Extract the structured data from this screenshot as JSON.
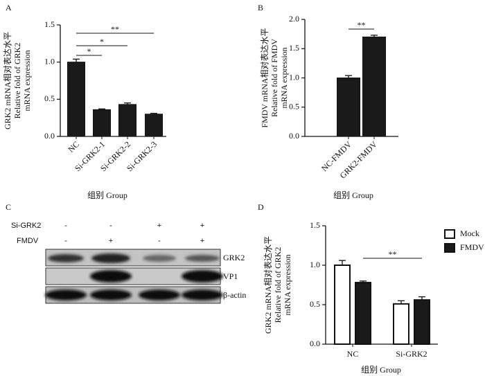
{
  "chart_data": [
    {
      "type": "bar",
      "panel": "A",
      "ylabel": [
        "GRK2 mRNA相对表达水平",
        "Relative fold of GRK2",
        "mRNA expression"
      ],
      "xlabel": "组别 Group",
      "categories": [
        "NC",
        "Si-GRK2-1",
        "Si-GRK2-2",
        "Si-GRK2-3"
      ],
      "values": [
        1.0,
        0.36,
        0.43,
        0.3
      ],
      "errors": [
        0.04,
        0.01,
        0.02,
        0.01
      ],
      "color": "#1a1a1a",
      "ylim": [
        0,
        1.5
      ],
      "yticks": [
        {
          "value": 0,
          "label": "0.0"
        },
        {
          "value": 0.5,
          "label": "0.5"
        },
        {
          "value": 1,
          "label": "1.0"
        },
        {
          "value": 1.5,
          "label": "1.5"
        }
      ],
      "annotations": [
        "*",
        "*",
        "**"
      ]
    },
    {
      "type": "bar",
      "panel": "B",
      "ylabel": [
        "FMDV mRNA相对表达水平",
        "Relative fold of FMDV",
        "mRNA expression"
      ],
      "xlabel": "组别 Group",
      "categories": [
        "NC-FMDV",
        "GRK2-FMDV"
      ],
      "values": [
        1.0,
        1.7
      ],
      "errors": [
        0.04,
        0.03
      ],
      "color": "#1a1a1a",
      "ylim": [
        0,
        2
      ],
      "yticks": [
        {
          "value": 0,
          "label": "0.0"
        },
        {
          "value": 0.5,
          "label": "0.5"
        },
        {
          "value": 1,
          "label": "1.0"
        },
        {
          "value": 1.5,
          "label": "1.5"
        },
        {
          "value": 2,
          "label": "2.0"
        }
      ],
      "annotations": [
        "**"
      ]
    },
    {
      "type": "grouped_bar",
      "panel": "D",
      "ylabel": [
        "GRK2 mRNA相对表达水平",
        "Relative fold of GRK2",
        "mRNA expression"
      ],
      "xlabel": "组别 Group",
      "categories": [
        "NC",
        "Si-GRK2"
      ],
      "series": [
        {
          "name": "Mock",
          "color": "#ffffff",
          "values": [
            1.0,
            0.51
          ],
          "errors": [
            0.06,
            0.04
          ]
        },
        {
          "name": "FMDV",
          "color": "#1a1a1a",
          "values": [
            0.78,
            0.56
          ],
          "errors": [
            0.02,
            0.04
          ]
        }
      ],
      "ylim": [
        0,
        1.5
      ],
      "yticks": [
        {
          "value": 0,
          "label": "0.0"
        },
        {
          "value": 0.5,
          "label": "0.5"
        },
        {
          "value": 1,
          "label": "1.0"
        },
        {
          "value": 1.5,
          "label": "1.5"
        }
      ],
      "legend": "outside right",
      "annotations": [
        "**"
      ]
    }
  ],
  "blot": {
    "panel": "C",
    "conditions": [
      {
        "name": "Si-GRK2",
        "signs": [
          "-",
          "-",
          "+",
          "+"
        ]
      },
      {
        "name": "FMDV",
        "signs": [
          "-",
          "+",
          "-",
          "+"
        ]
      }
    ],
    "bands": [
      "GRK2",
      "VP1",
      "β-actin"
    ]
  }
}
